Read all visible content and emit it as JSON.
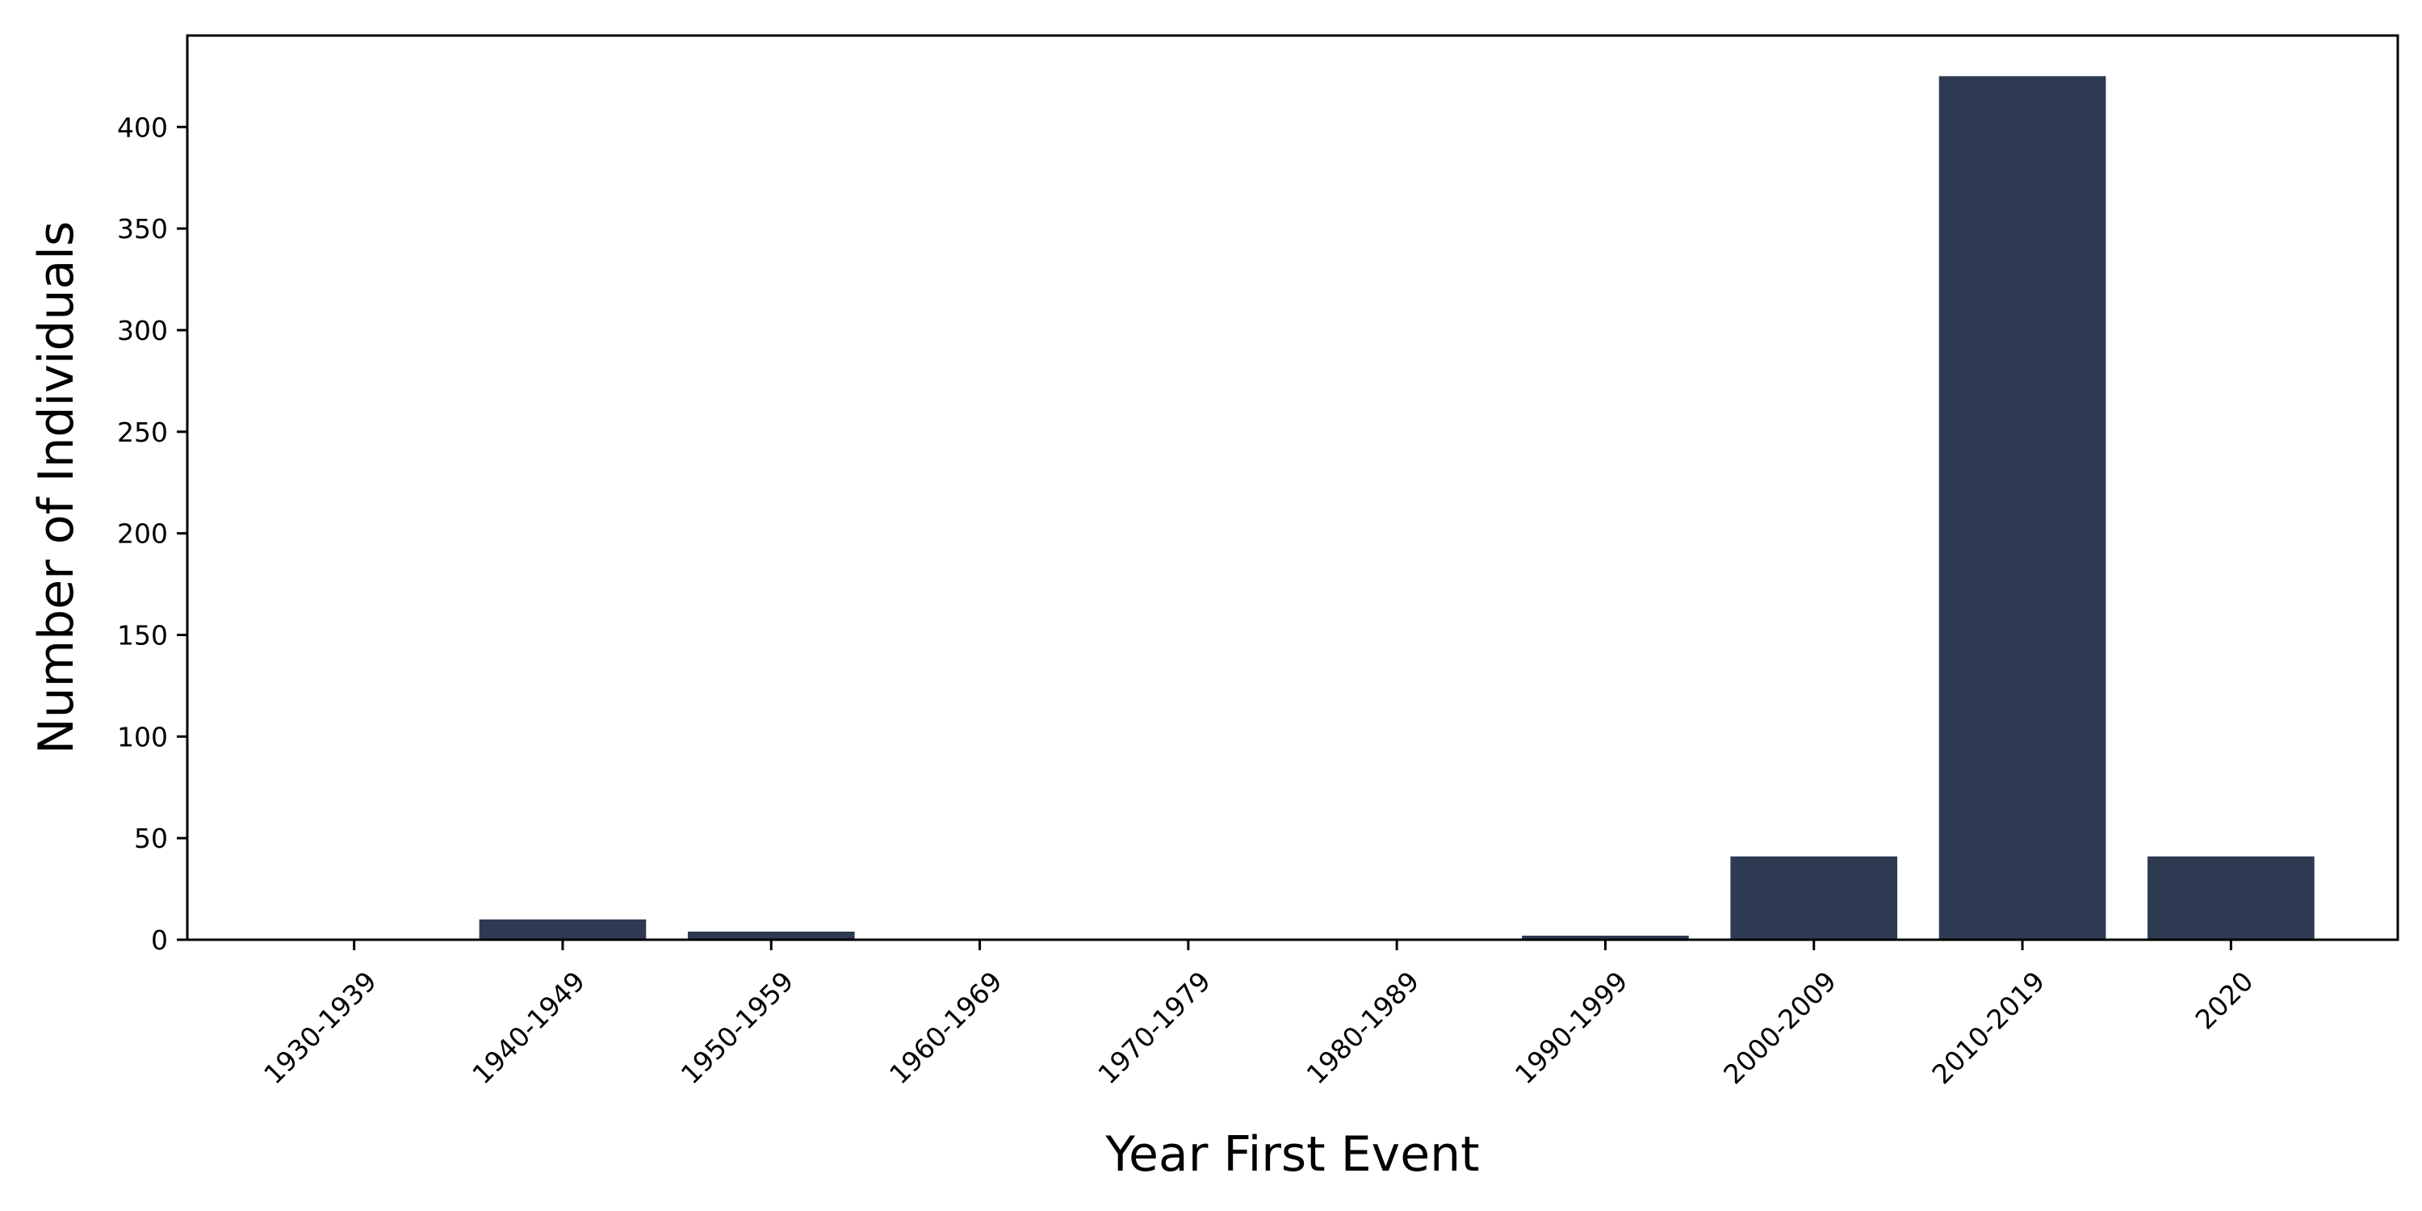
{
  "chart_data": {
    "type": "bar",
    "title": "",
    "xlabel": "Year First Event",
    "ylabel": "Number of Individuals",
    "categories": [
      "1930-1939",
      "1940-1949",
      "1950-1959",
      "1960-1969",
      "1970-1979",
      "1980-1989",
      "1990-1999",
      "2000-2009",
      "2010-2019",
      "2020"
    ],
    "values": [
      0,
      10,
      4,
      0,
      0,
      0,
      2,
      41,
      425,
      41
    ],
    "ylim": [
      0,
      445
    ],
    "yticks": [
      0,
      50,
      100,
      150,
      200,
      250,
      300,
      350,
      400
    ],
    "grid": false,
    "legend": "none",
    "bar_color": "#2d3a52",
    "x_tick_rotation": -45
  }
}
